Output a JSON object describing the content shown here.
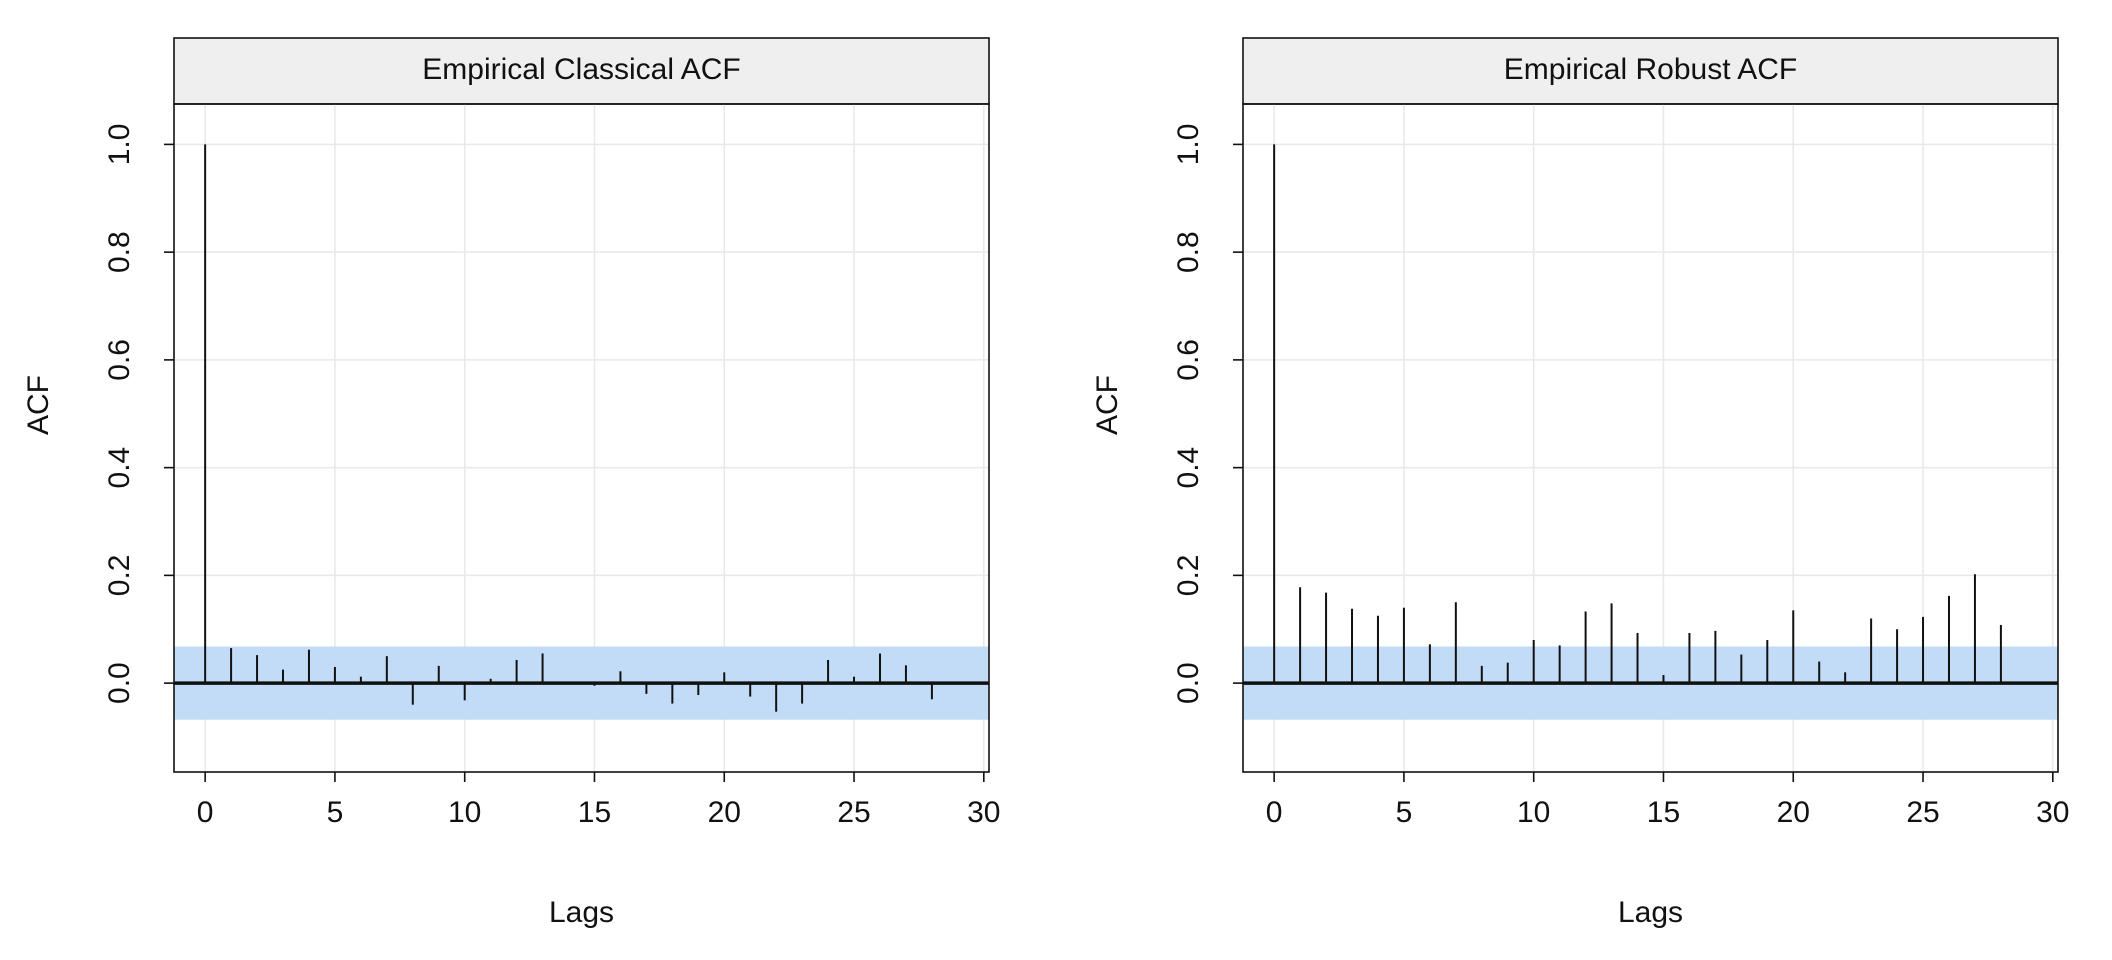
{
  "chart_data": [
    {
      "type": "bar",
      "title": "Empirical Classical ACF",
      "xlabel": "Lags",
      "ylabel": "ACF",
      "xlim": [
        -1.2,
        30.2
      ],
      "ylim": [
        -0.165,
        1.075
      ],
      "xticks": [
        "0",
        "5",
        "10",
        "15",
        "20",
        "25",
        "30"
      ],
      "yticks": [
        "0.0",
        "0.2",
        "0.4",
        "0.6",
        "0.8",
        "1.0"
      ],
      "grid": true,
      "confidence_band": [
        -0.068,
        0.068
      ],
      "lags": [
        0,
        1,
        2,
        3,
        4,
        5,
        6,
        7,
        8,
        9,
        10,
        11,
        12,
        13,
        14,
        15,
        16,
        17,
        18,
        19,
        20,
        21,
        22,
        23,
        24,
        25,
        26,
        27,
        28
      ],
      "values": [
        1.0,
        0.065,
        0.052,
        0.025,
        0.062,
        0.03,
        0.012,
        0.05,
        -0.04,
        0.032,
        -0.032,
        0.008,
        0.043,
        0.055,
        0.002,
        -0.005,
        0.022,
        -0.02,
        -0.038,
        -0.022,
        0.02,
        -0.025,
        -0.053,
        -0.038,
        0.043,
        0.012,
        0.055,
        0.033,
        -0.03
      ]
    },
    {
      "type": "bar",
      "title": "Empirical Robust ACF",
      "xlabel": "Lags",
      "ylabel": "ACF",
      "xlim": [
        -1.2,
        30.2
      ],
      "ylim": [
        -0.165,
        1.075
      ],
      "xticks": [
        "0",
        "5",
        "10",
        "15",
        "20",
        "25",
        "30"
      ],
      "yticks": [
        "0.0",
        "0.2",
        "0.4",
        "0.6",
        "0.8",
        "1.0"
      ],
      "grid": true,
      "confidence_band": [
        -0.068,
        0.068
      ],
      "lags": [
        0,
        1,
        2,
        3,
        4,
        5,
        6,
        7,
        8,
        9,
        10,
        11,
        12,
        13,
        14,
        15,
        16,
        17,
        18,
        19,
        20,
        21,
        22,
        23,
        24,
        25,
        26,
        27,
        28
      ],
      "values": [
        1.0,
        0.178,
        0.168,
        0.138,
        0.125,
        0.14,
        0.072,
        0.15,
        0.032,
        0.038,
        0.08,
        0.07,
        0.133,
        0.148,
        0.093,
        0.015,
        0.093,
        0.097,
        0.053,
        0.08,
        0.135,
        0.04,
        0.02,
        0.12,
        0.1,
        0.123,
        0.162,
        0.202,
        0.108
      ]
    }
  ],
  "colors": {
    "band": "#c2dcf7",
    "strip": "#efefef",
    "grid": "#e8e8e8",
    "ink": "#111111"
  }
}
